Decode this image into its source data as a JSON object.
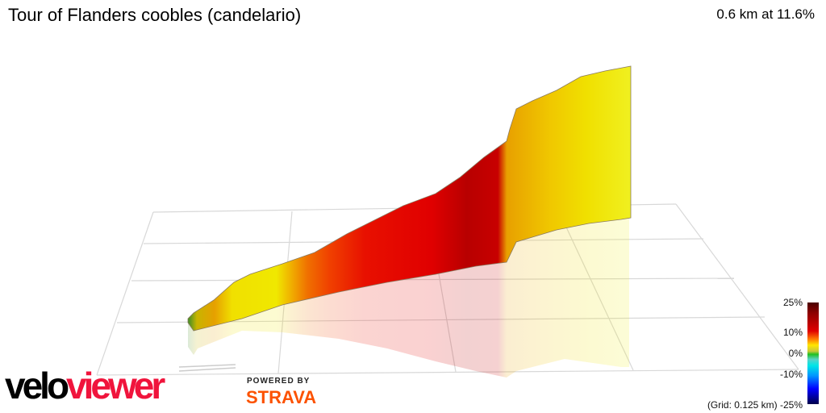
{
  "title": "Tour of Flanders coobles (candelario)",
  "summary": "0.6 km at 11.6%",
  "legend": {
    "ticks": [
      "25%",
      "10%",
      "0%",
      "-10%",
      "-25%"
    ],
    "grid_note": "(Grid: 0.125 km)"
  },
  "branding": {
    "logo_velo": "velo",
    "logo_viewer": "viewer",
    "powered_by": "POWERED BY",
    "strava": "STRAVA"
  }
}
